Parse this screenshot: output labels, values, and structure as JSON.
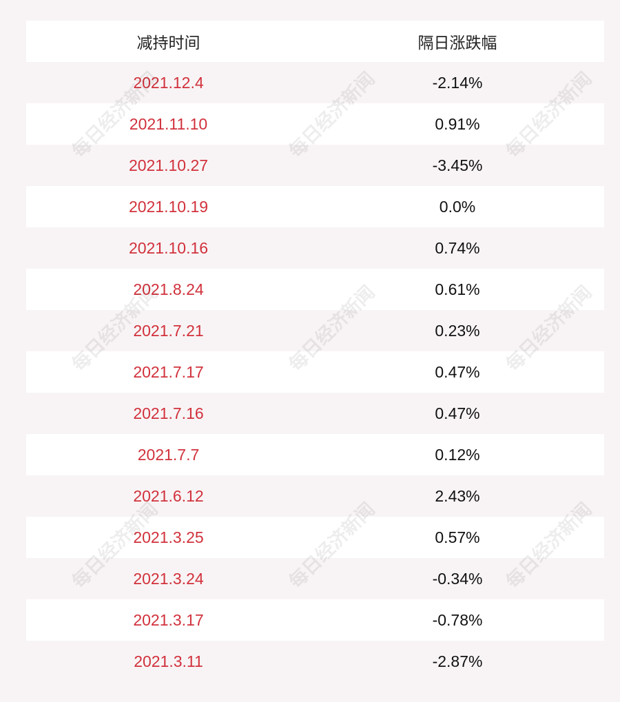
{
  "table": {
    "header": [
      "减持时间",
      "隔日涨跌幅"
    ],
    "rows": [
      [
        "2021.12.4",
        "-2.14%"
      ],
      [
        "2021.11.10",
        "0.91%"
      ],
      [
        "2021.10.27",
        "-3.45%"
      ],
      [
        "2021.10.19",
        "0.0%"
      ],
      [
        "2021.10.16",
        "0.74%"
      ],
      [
        "2021.8.24",
        "0.61%"
      ],
      [
        "2021.7.21",
        "0.23%"
      ],
      [
        "2021.7.17",
        "0.47%"
      ],
      [
        "2021.7.16",
        "0.47%"
      ],
      [
        "2021.7.7",
        "0.12%"
      ],
      [
        "2021.6.12",
        "2.43%"
      ],
      [
        "2021.3.25",
        "0.57%"
      ],
      [
        "2021.3.24",
        "-0.34%"
      ],
      [
        "2021.3.17",
        "-0.78%"
      ],
      [
        "2021.3.11",
        "-2.87%"
      ]
    ]
  },
  "watermark": "每日经济新闻"
}
